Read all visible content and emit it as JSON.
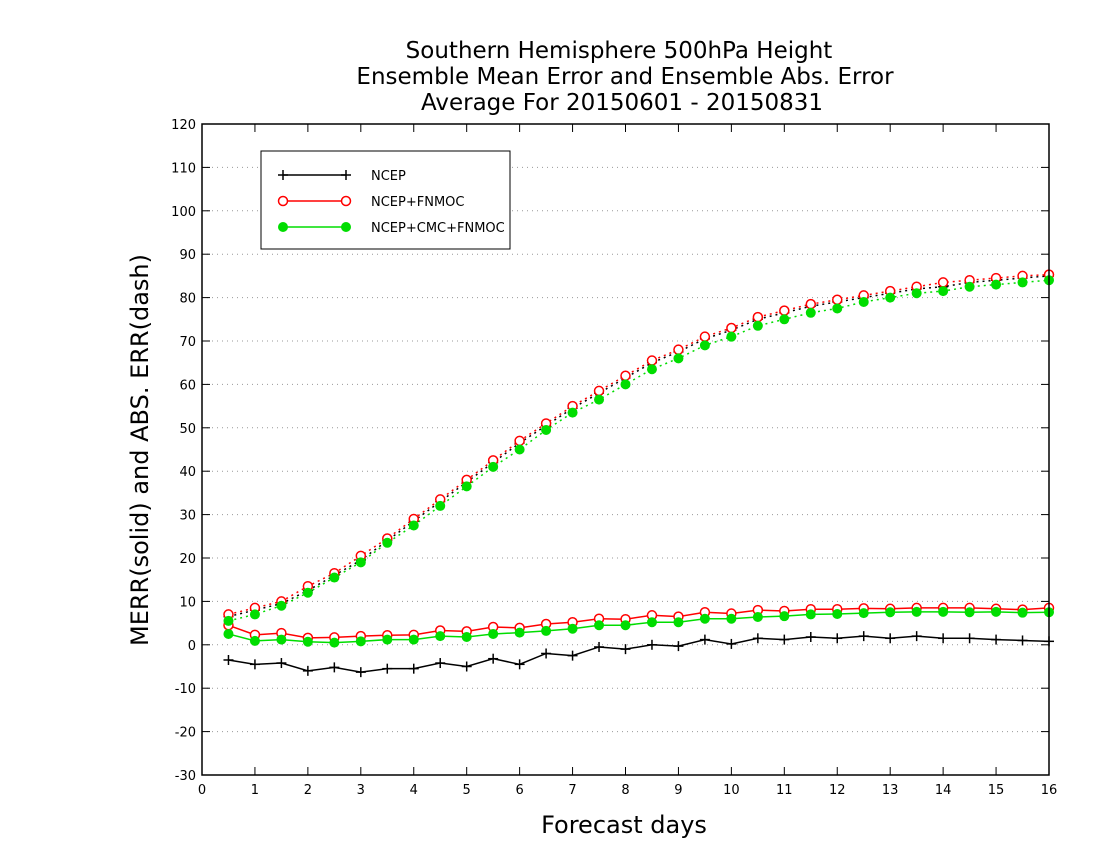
{
  "chart_data": {
    "type": "line",
    "title_lines": [
      "Southern Hemisphere 500hPa Height",
      "Ensemble Mean Error and Ensemble Abs. Error",
      "Average For 20150601 - 20150831"
    ],
    "xlabel": "Forecast days",
    "ylabel": "MERR(solid) and ABS. ERR(dash)",
    "xlim": [
      0,
      16
    ],
    "ylim": [
      -30,
      120
    ],
    "xticks": [
      0,
      1,
      2,
      3,
      4,
      5,
      6,
      7,
      8,
      9,
      10,
      11,
      12,
      13,
      14,
      15,
      16
    ],
    "yticks": [
      -30,
      -20,
      -10,
      0,
      10,
      20,
      30,
      40,
      50,
      60,
      70,
      80,
      90,
      100,
      110,
      120
    ],
    "grid": true,
    "legend_position": "top-left",
    "x": [
      0.5,
      1,
      1.5,
      2,
      2.5,
      3,
      3.5,
      4,
      4.5,
      5,
      5.5,
      6,
      6.5,
      7,
      7.5,
      8,
      8.5,
      9,
      9.5,
      10,
      10.5,
      11,
      11.5,
      12,
      12.5,
      13,
      13.5,
      14,
      14.5,
      15,
      15.5,
      16
    ],
    "series": [
      {
        "name": "NCEP",
        "color": "#000000",
        "marker": "plus",
        "merr": [
          -3.5,
          -4.5,
          -4.2,
          -6,
          -5.2,
          -6.3,
          -5.5,
          -5.5,
          -4.2,
          -5,
          -3.2,
          -4.5,
          -2,
          -2.5,
          -0.5,
          -1,
          0,
          -0.3,
          1.2,
          0.2,
          1.5,
          1.2,
          1.8,
          1.5,
          2,
          1.5,
          2,
          1.5,
          1.5,
          1.2,
          1,
          0.8
        ],
        "abserr": [
          6.5,
          8,
          9.5,
          12.5,
          16,
          19.5,
          24,
          28.5,
          33,
          37.5,
          42,
          46.5,
          50.5,
          54.5,
          58,
          61.5,
          65,
          67.5,
          70.5,
          72.5,
          75,
          76.5,
          78,
          79,
          80,
          81,
          82,
          82.5,
          83.5,
          84,
          84.5,
          85
        ]
      },
      {
        "name": "NCEP+FNMOC",
        "color": "#ff0000",
        "marker": "open-circle",
        "merr": [
          4.5,
          2.3,
          2.7,
          1.6,
          1.7,
          2,
          2.2,
          2.3,
          3.3,
          3.1,
          4.1,
          3.9,
          4.8,
          5.2,
          6,
          5.9,
          6.8,
          6.5,
          7.5,
          7.2,
          8,
          7.8,
          8.2,
          8.2,
          8.4,
          8.3,
          8.5,
          8.5,
          8.5,
          8.3,
          8.1,
          8.5
        ],
        "abserr": [
          7,
          8.5,
          10,
          13.5,
          16.5,
          20.5,
          24.5,
          29,
          33.5,
          38,
          42.5,
          47,
          51,
          55,
          58.5,
          62,
          65.5,
          68,
          71,
          73,
          75.5,
          77,
          78.5,
          79.5,
          80.5,
          81.5,
          82.5,
          83.5,
          84,
          84.5,
          85,
          85.3
        ]
      },
      {
        "name": "NCEP+CMC+FNMOC",
        "color": "#00dd00",
        "marker": "filled-circle",
        "merr": [
          2.5,
          0.9,
          1.2,
          0.7,
          0.5,
          0.8,
          1.2,
          1.2,
          2,
          1.8,
          2.5,
          2.8,
          3.2,
          3.7,
          4.5,
          4.5,
          5.2,
          5.2,
          6,
          6,
          6.4,
          6.6,
          7,
          7.1,
          7.3,
          7.5,
          7.6,
          7.6,
          7.5,
          7.6,
          7.4,
          7.5
        ],
        "abserr": [
          5.5,
          7,
          9,
          12,
          15.5,
          19,
          23.5,
          27.5,
          32,
          36.5,
          41,
          45,
          49.5,
          53.5,
          56.5,
          60,
          63.5,
          66,
          69,
          71,
          73.5,
          75,
          76.5,
          77.5,
          79,
          80,
          81,
          81.5,
          82.5,
          83,
          83.5,
          84
        ]
      }
    ]
  }
}
